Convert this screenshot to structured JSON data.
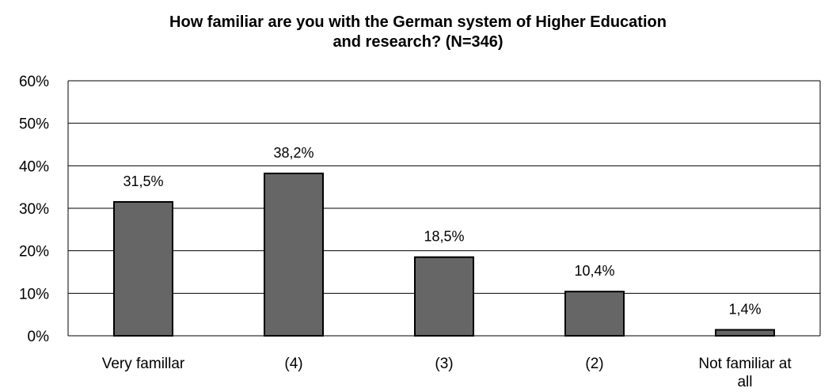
{
  "chart_data": {
    "type": "bar",
    "title_lines": [
      "How familiar are you with the German system of Higher Education",
      "and research? (N=346)"
    ],
    "categories": [
      [
        "Very famillar"
      ],
      [
        "(4)"
      ],
      [
        "(3)"
      ],
      [
        "(2)"
      ],
      [
        "Not familiar at",
        "all"
      ]
    ],
    "values": [
      31.5,
      38.2,
      18.5,
      10.4,
      1.4
    ],
    "value_labels": [
      "31,5%",
      "38,2%",
      "18,5%",
      "10,4%",
      "1,4%"
    ],
    "ylim": [
      0,
      60
    ],
    "yticks": [
      0,
      10,
      20,
      30,
      40,
      50,
      60
    ],
    "ytick_labels": [
      "0%",
      "10%",
      "20%",
      "30%",
      "40%",
      "50%",
      "60%"
    ],
    "xlabel": "",
    "ylabel": "",
    "grid": true,
    "legend": "none",
    "colors": {
      "bar_fill": "#666666",
      "bar_stroke": "#000000",
      "grid": "#000000"
    }
  }
}
